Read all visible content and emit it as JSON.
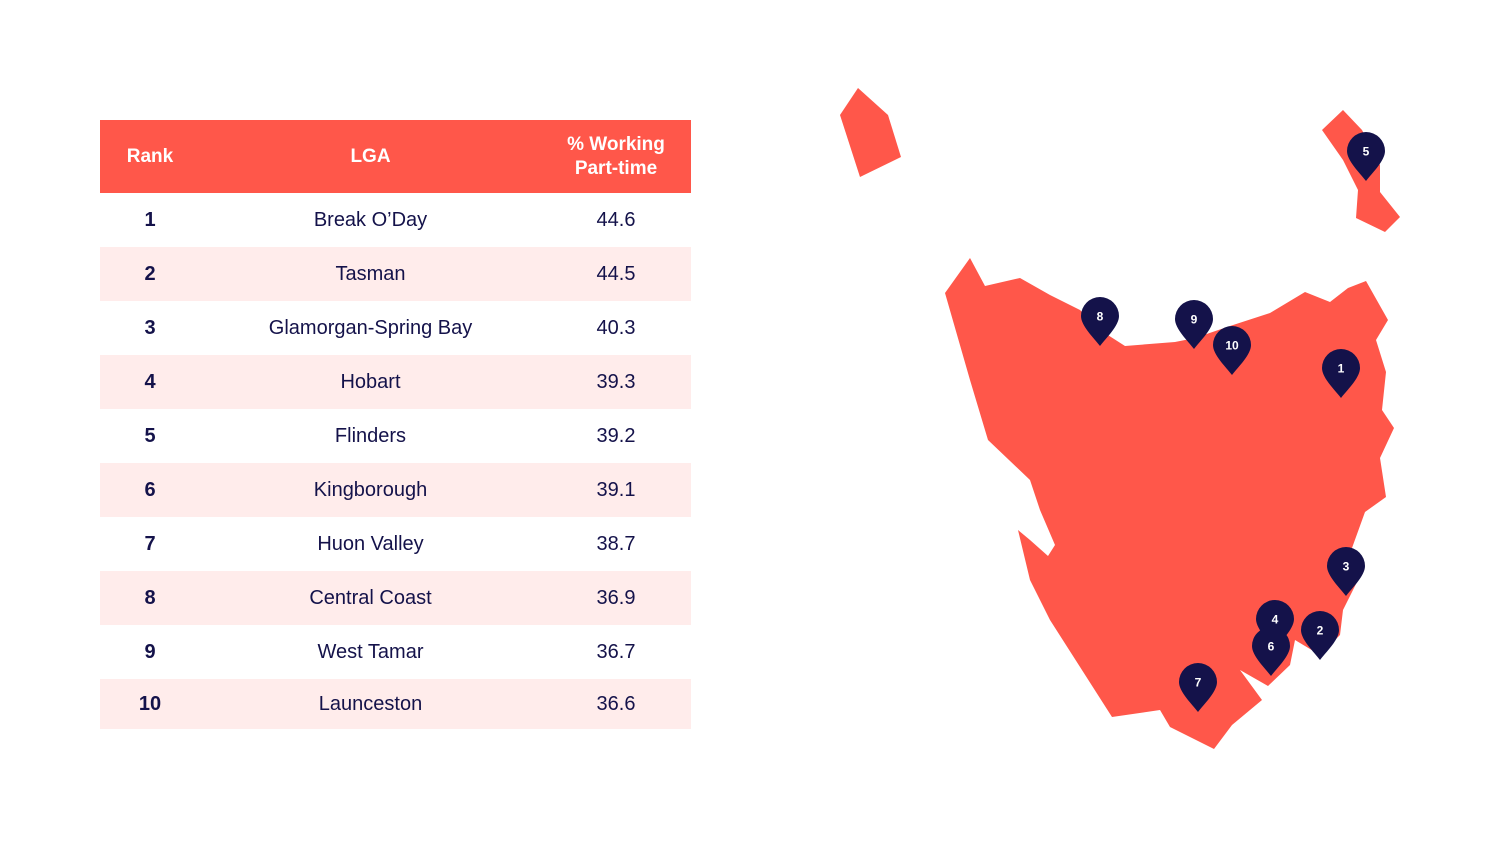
{
  "table": {
    "headers": {
      "rank": "Rank",
      "lga": "LGA",
      "pct_line1": "% Working",
      "pct_line2": "Part-time"
    },
    "rows": [
      {
        "rank": "1",
        "lga": "Break O’Day",
        "pct": "44.6"
      },
      {
        "rank": "2",
        "lga": "Tasman",
        "pct": "44.5"
      },
      {
        "rank": "3",
        "lga": "Glamorgan-Spring Bay",
        "pct": "40.3"
      },
      {
        "rank": "4",
        "lga": "Hobart",
        "pct": "39.3"
      },
      {
        "rank": "5",
        "lga": "Flinders",
        "pct": "39.2"
      },
      {
        "rank": "6",
        "lga": "Kingborough",
        "pct": "39.1"
      },
      {
        "rank": "7",
        "lga": "Huon Valley",
        "pct": "38.7"
      },
      {
        "rank": "8",
        "lga": "Central Coast",
        "pct": "36.9"
      },
      {
        "rank": "9",
        "lga": "West Tamar",
        "pct": "36.7"
      },
      {
        "rank": "10",
        "lga": "Launceston",
        "pct": "36.6"
      }
    ]
  },
  "map": {
    "land_color": "#ff574a",
    "pin_color": "#14124a",
    "pins": [
      "1",
      "2",
      "3",
      "4",
      "5",
      "6",
      "7",
      "8",
      "9",
      "10"
    ]
  },
  "colors": {
    "header_bg": "#ff574a",
    "row_alt_bg": "#ffeceb",
    "text": "#14124a"
  }
}
